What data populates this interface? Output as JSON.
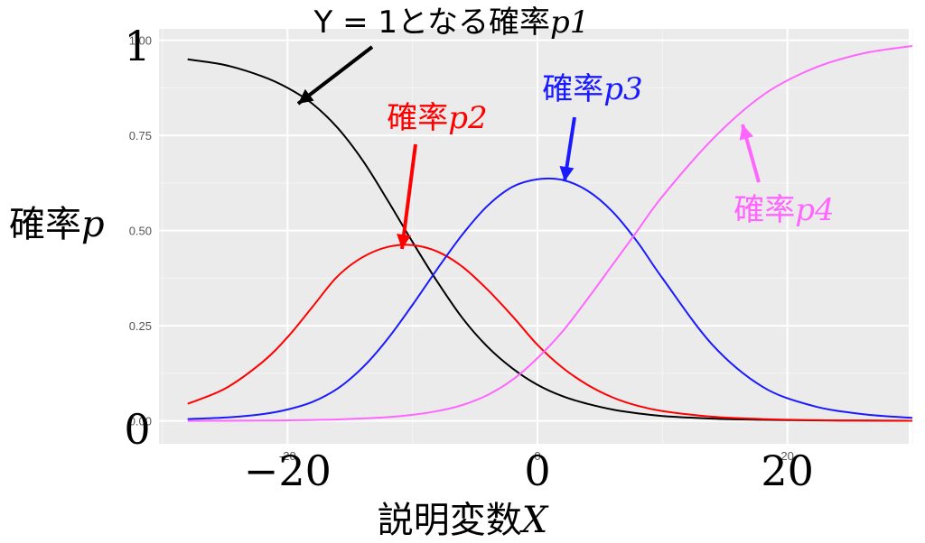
{
  "chart_data": {
    "type": "line",
    "xlabel": "説明変数X",
    "ylabel": "確率p",
    "xlim": [
      -30,
      30
    ],
    "ylim": [
      0,
      1
    ],
    "x_ticks": [
      "−20",
      "0",
      "20"
    ],
    "x_ticks_small": [
      "-20",
      "0",
      "20"
    ],
    "y_ticks_small": [
      "0.00",
      "0.25",
      "0.50",
      "0.75",
      "1.00"
    ],
    "y_ticks_big": [
      "0",
      "1"
    ],
    "background": "#EBEBEB",
    "grid": true,
    "series": [
      {
        "name": "Y = 1となる確率p1",
        "color": "#000000",
        "x": [
          -28,
          -25,
          -22,
          -20,
          -18,
          -16,
          -14,
          -12,
          -10,
          -8,
          -6,
          -4,
          -2,
          0,
          2,
          4,
          6,
          8,
          10,
          14,
          18,
          22,
          26,
          30
        ],
        "values": [
          0.95,
          0.935,
          0.905,
          0.875,
          0.833,
          0.77,
          0.685,
          0.58,
          0.47,
          0.365,
          0.27,
          0.195,
          0.138,
          0.095,
          0.065,
          0.045,
          0.03,
          0.02,
          0.013,
          0.006,
          0.003,
          0.0015,
          0.0008,
          0.0004
        ]
      },
      {
        "name": "確率p2",
        "color": "#FF0000",
        "x": [
          -28,
          -25,
          -22,
          -20,
          -18,
          -16,
          -14,
          -12,
          -10,
          -8,
          -6,
          -4,
          -2,
          0,
          2,
          4,
          6,
          8,
          10,
          14,
          18,
          22,
          26,
          30
        ],
        "values": [
          0.045,
          0.085,
          0.155,
          0.22,
          0.3,
          0.38,
          0.43,
          0.457,
          0.462,
          0.445,
          0.405,
          0.345,
          0.275,
          0.2,
          0.14,
          0.095,
          0.062,
          0.04,
          0.026,
          0.011,
          0.005,
          0.002,
          0.001,
          0.0005
        ]
      },
      {
        "name": "確率p3",
        "color": "#1A1AFF",
        "x": [
          -28,
          -25,
          -22,
          -20,
          -18,
          -16,
          -14,
          -12,
          -10,
          -8,
          -6,
          -4,
          -2,
          0,
          2,
          4,
          6,
          8,
          10,
          14,
          18,
          22,
          26,
          30
        ],
        "values": [
          0.005,
          0.009,
          0.018,
          0.03,
          0.05,
          0.085,
          0.14,
          0.215,
          0.305,
          0.4,
          0.49,
          0.565,
          0.615,
          0.635,
          0.633,
          0.605,
          0.55,
          0.47,
          0.375,
          0.2,
          0.09,
          0.04,
          0.018,
          0.008
        ]
      },
      {
        "name": "確率p4",
        "color": "#FF66FF",
        "x": [
          -28,
          -25,
          -22,
          -20,
          -18,
          -16,
          -14,
          -12,
          -10,
          -8,
          -6,
          -4,
          -2,
          0,
          2,
          4,
          6,
          8,
          10,
          14,
          18,
          22,
          26,
          30
        ],
        "values": [
          0.0002,
          0.0005,
          0.001,
          0.0015,
          0.0025,
          0.004,
          0.0065,
          0.01,
          0.016,
          0.026,
          0.042,
          0.068,
          0.108,
          0.165,
          0.235,
          0.32,
          0.41,
          0.5,
          0.59,
          0.74,
          0.855,
          0.925,
          0.965,
          0.985
        ]
      }
    ],
    "annotations": [
      {
        "label_pre": "Y = 1となる確率",
        "label_var": "p1",
        "color": "#000000"
      },
      {
        "label_pre": "確率",
        "label_var": "p2",
        "color": "#FF0000"
      },
      {
        "label_pre": "確率",
        "label_var": "p3",
        "color": "#1A1AFF"
      },
      {
        "label_pre": "確率",
        "label_var": "p4",
        "color": "#FF66FF"
      }
    ]
  }
}
